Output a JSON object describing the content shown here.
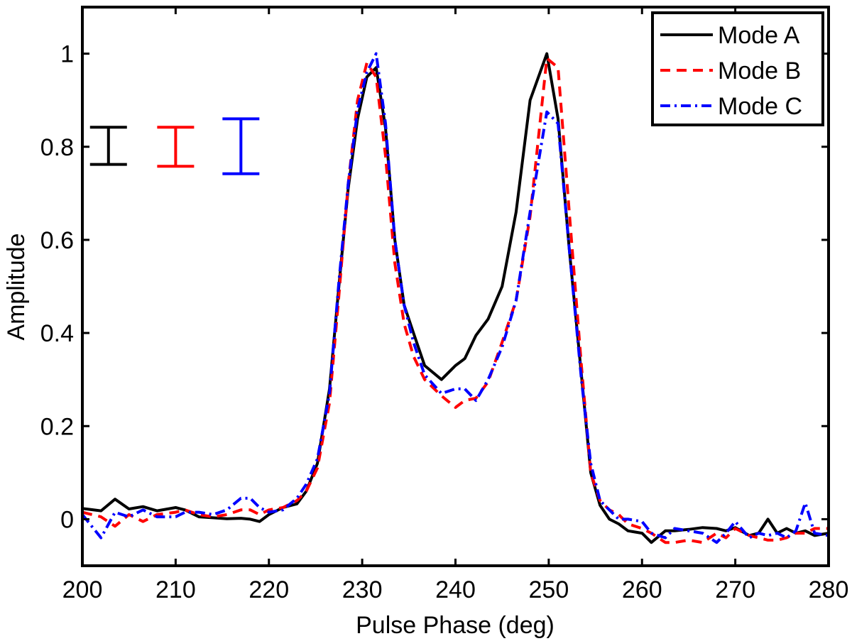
{
  "chart_data": {
    "type": "line",
    "title": "",
    "xlabel": "Pulse Phase (deg)",
    "ylabel": "Amplitude",
    "xlim": [
      200,
      280
    ],
    "ylim": [
      -0.1,
      1.1
    ],
    "xticks": [
      200,
      210,
      220,
      230,
      240,
      250,
      260,
      270,
      280
    ],
    "xtick_labels": [
      "200",
      "210",
      "220",
      "230",
      "240",
      "250",
      "260",
      "270",
      "280"
    ],
    "yticks": [
      0,
      0.2,
      0.4,
      0.6,
      0.8,
      1.0
    ],
    "ytick_labels": [
      "0",
      "0.2",
      "0.4",
      "0.6",
      "0.8",
      "1"
    ],
    "grid": false,
    "legend_position": "top-right",
    "series": [
      {
        "name": "Mode A",
        "color": "#000000",
        "style": "solid",
        "x": [
          200,
          202,
          203.5,
          205,
          206.5,
          208,
          210,
          211,
          212.5,
          214,
          215.5,
          217,
          218,
          219,
          220,
          221.5,
          223,
          224,
          225.2,
          226.5,
          227.5,
          228.5,
          229.5,
          230.5,
          231.5,
          232.5,
          233.5,
          234.5,
          235.5,
          236.7,
          238.5,
          240,
          241,
          242.2,
          243.5,
          245,
          246.5,
          248,
          249.8,
          251,
          252.2,
          253.5,
          254.5,
          255.5,
          256.5,
          257.5,
          258.5,
          260,
          261,
          262.5,
          263.5,
          265,
          266.5,
          268,
          269,
          270,
          271.5,
          272.5,
          273.5,
          274.5,
          275.5,
          276.5,
          277.5,
          278.5,
          280
        ],
        "values": [
          0.023,
          0.018,
          0.043,
          0.022,
          0.027,
          0.018,
          0.025,
          0.02,
          0.005,
          0.003,
          0.001,
          0.002,
          0.0,
          -0.005,
          0.01,
          0.025,
          0.033,
          0.06,
          0.12,
          0.28,
          0.5,
          0.71,
          0.86,
          0.95,
          0.97,
          0.84,
          0.6,
          0.46,
          0.4,
          0.33,
          0.3,
          0.33,
          0.345,
          0.395,
          0.43,
          0.5,
          0.66,
          0.9,
          1.0,
          0.86,
          0.58,
          0.31,
          0.1,
          0.03,
          0.0,
          -0.01,
          -0.025,
          -0.03,
          -0.05,
          -0.025,
          -0.025,
          -0.022,
          -0.018,
          -0.02,
          -0.025,
          -0.018,
          -0.035,
          -0.03,
          0.0,
          -0.03,
          -0.02,
          -0.03,
          -0.025,
          -0.035,
          -0.03
        ]
      },
      {
        "name": "Mode B",
        "color": "#ff0000",
        "style": "dashed",
        "x": [
          200,
          202,
          203.5,
          205,
          206.5,
          208,
          210,
          211,
          212.5,
          214,
          215.5,
          217,
          218,
          219,
          220,
          221.5,
          223,
          224,
          225.2,
          226.5,
          227.5,
          228.5,
          229.5,
          230.5,
          231.5,
          232.5,
          233.5,
          234.5,
          235.5,
          236.7,
          238.5,
          240,
          241,
          242.2,
          243.5,
          245,
          246.5,
          248,
          249.8,
          251,
          252.2,
          253.5,
          254.5,
          255.5,
          256.5,
          257.5,
          258.5,
          260,
          261,
          262.5,
          263.5,
          265,
          266.5,
          268,
          269,
          270,
          271.5,
          272.5,
          273.5,
          274.5,
          275.5,
          276.5,
          277.5,
          278.5,
          280
        ],
        "values": [
          0.015,
          0.005,
          -0.015,
          0.01,
          -0.005,
          0.01,
          0.015,
          0.02,
          0.01,
          0.005,
          0.01,
          0.02,
          0.02,
          0.01,
          0.02,
          0.025,
          0.04,
          0.06,
          0.11,
          0.25,
          0.48,
          0.72,
          0.9,
          0.98,
          0.95,
          0.78,
          0.55,
          0.42,
          0.35,
          0.3,
          0.265,
          0.24,
          0.255,
          0.26,
          0.295,
          0.38,
          0.47,
          0.65,
          0.99,
          0.97,
          0.66,
          0.33,
          0.1,
          0.04,
          0.02,
          0.01,
          -0.01,
          -0.02,
          -0.03,
          -0.05,
          -0.05,
          -0.045,
          -0.05,
          -0.03,
          -0.04,
          -0.02,
          -0.035,
          -0.04,
          -0.045,
          -0.045,
          -0.04,
          -0.03,
          -0.03,
          -0.02,
          -0.02
        ]
      },
      {
        "name": "Mode C",
        "color": "#0000ff",
        "style": "dashdot",
        "x": [
          200,
          202,
          203.5,
          205,
          206.5,
          208,
          210,
          211,
          212.5,
          214,
          215.5,
          217,
          218,
          219,
          220,
          221.5,
          223,
          224,
          225.2,
          226.5,
          227.5,
          228.5,
          229.5,
          230.5,
          231.5,
          232.5,
          233.5,
          234.5,
          235.5,
          236.7,
          238.5,
          240,
          241,
          242.2,
          243.5,
          245,
          246.5,
          248,
          249.8,
          251,
          252.2,
          253.5,
          254.5,
          255.5,
          256.5,
          257.5,
          258.5,
          260,
          261,
          262.5,
          263.5,
          265,
          266.5,
          268,
          269,
          270,
          271.5,
          272.5,
          273.5,
          274.5,
          275.5,
          276.5,
          277.5,
          278.5,
          280
        ],
        "values": [
          0.01,
          -0.04,
          0.015,
          0.005,
          0.02,
          0.005,
          0.005,
          0.015,
          0.015,
          0.01,
          0.02,
          0.045,
          0.045,
          0.025,
          0.015,
          0.02,
          0.045,
          0.075,
          0.13,
          0.27,
          0.51,
          0.72,
          0.88,
          0.96,
          1.0,
          0.85,
          0.6,
          0.46,
          0.38,
          0.31,
          0.27,
          0.28,
          0.28,
          0.255,
          0.3,
          0.37,
          0.47,
          0.66,
          0.875,
          0.85,
          0.58,
          0.3,
          0.12,
          0.04,
          0.02,
          0.0,
          0.0,
          -0.005,
          -0.03,
          -0.04,
          -0.02,
          -0.025,
          -0.03,
          -0.05,
          -0.03,
          -0.005,
          -0.04,
          -0.03,
          -0.035,
          -0.03,
          -0.04,
          -0.025,
          0.035,
          -0.03,
          -0.035
        ]
      }
    ],
    "error_bars": [
      {
        "series": "Mode A",
        "color": "#000000",
        "x": 202.8,
        "low": 0.762,
        "high": 0.842
      },
      {
        "series": "Mode B",
        "color": "#ff0000",
        "x": 210.0,
        "low": 0.758,
        "high": 0.842
      },
      {
        "series": "Mode C",
        "color": "#0000ff",
        "x": 217.0,
        "low": 0.742,
        "high": 0.86
      }
    ]
  }
}
